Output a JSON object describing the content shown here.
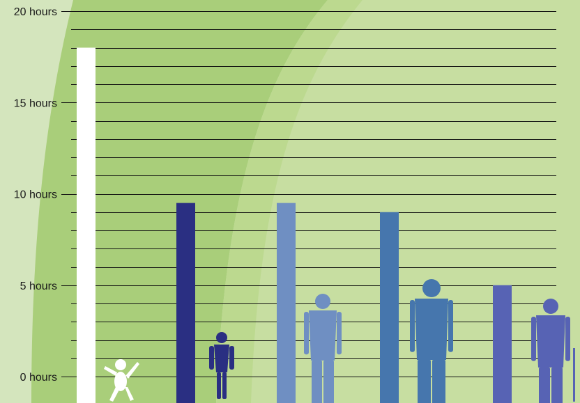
{
  "chart_data": {
    "type": "bar",
    "title": "",
    "xlabel": "",
    "ylabel": "",
    "ylim": [
      0,
      20
    ],
    "y_unit": "hours",
    "y_ticks": [
      0,
      5,
      10,
      15,
      20
    ],
    "y_tick_labels": [
      "0 hours",
      "5 hours",
      "10 hours",
      "15 hours",
      "20 hours"
    ],
    "grid": true,
    "categories": [
      "infant",
      "child",
      "teen",
      "adult",
      "older adult"
    ],
    "values": [
      18,
      9.5,
      9.5,
      9,
      5
    ],
    "bar_colors": [
      "#ffffff",
      "#2a2f82",
      "#6f8fc2",
      "#4676ad",
      "#5763b4"
    ],
    "figure_colors": [
      "#ffffff",
      "#2a2f82",
      "#6f8fc2",
      "#4676ad",
      "#5763b4"
    ],
    "icons": [
      "baby-silhouette-icon",
      "child-silhouette-icon",
      "teen-silhouette-icon",
      "adult-silhouette-icon",
      "elderly-silhouette-icon"
    ],
    "background_colors": [
      "#d4e5bd",
      "#a9ce7a",
      "#bcd98f",
      "#cfe1b0"
    ],
    "gridline_color": "#111111"
  }
}
